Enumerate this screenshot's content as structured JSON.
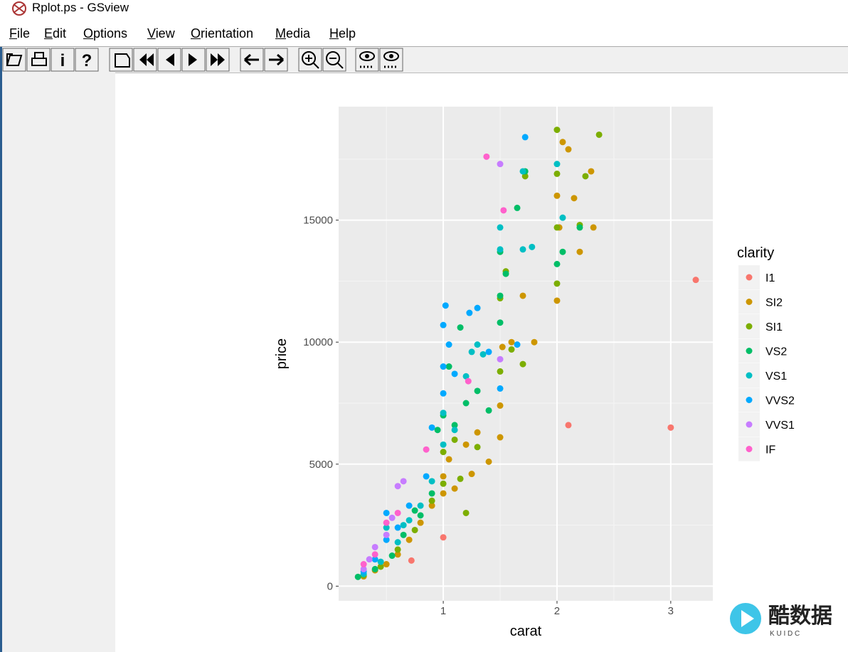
{
  "window": {
    "title": "Rplot.ps - GSview",
    "menu": [
      "File",
      "Edit",
      "Options",
      "View",
      "Orientation",
      "Media",
      "Help"
    ],
    "toolbar_text": [
      "i",
      "?"
    ]
  },
  "chart_data": {
    "type": "scatter",
    "x_label": "carat",
    "y_label": "price",
    "legend_title": "clarity",
    "xlim": [
      0.08,
      3.37
    ],
    "ylim": [
      -600,
      19650
    ],
    "xticks": [
      1,
      2,
      3
    ],
    "yticks": [
      0,
      5000,
      10000,
      15000
    ],
    "grid": true,
    "legend": "right",
    "series": [
      {
        "name": "I1",
        "color": "#F8766D",
        "x": [
          2.1,
          3.0,
          3.22,
          1.0,
          0.72
        ],
        "values": [
          6600,
          6500,
          12550,
          2000,
          1050
        ]
      },
      {
        "name": "SI2",
        "color": "#CD9600",
        "x": [
          0.3,
          0.4,
          0.5,
          0.6,
          0.7,
          0.8,
          0.9,
          1.0,
          1.0,
          1.05,
          1.1,
          1.2,
          1.25,
          1.3,
          1.4,
          1.5,
          1.5,
          1.52,
          1.6,
          1.7,
          1.8,
          2.0,
          2.0,
          2.02,
          2.05,
          2.1,
          2.2,
          2.3,
          2.32,
          2.15
        ],
        "values": [
          400,
          650,
          900,
          1300,
          1900,
          2600,
          3300,
          3800,
          4500,
          5200,
          4000,
          5800,
          4600,
          6300,
          5100,
          6100,
          7400,
          9800,
          10000,
          11900,
          10000,
          11700,
          16000,
          14700,
          18200,
          17900,
          13700,
          17000,
          14700,
          15900
        ]
      },
      {
        "name": "SI1",
        "color": "#7CAE00",
        "x": [
          0.3,
          0.45,
          0.6,
          0.75,
          0.9,
          1.0,
          1.0,
          1.1,
          1.15,
          1.2,
          1.3,
          1.5,
          1.5,
          1.55,
          1.6,
          1.7,
          1.72,
          2.0,
          2.0,
          2.0,
          2.25,
          2.37,
          2.0,
          2.2
        ],
        "values": [
          450,
          800,
          1500,
          2300,
          3500,
          4200,
          5500,
          6000,
          4400,
          3000,
          5700,
          8800,
          11800,
          12900,
          9700,
          9100,
          16800,
          12400,
          16900,
          18700,
          16800,
          18500,
          14700,
          14800
        ]
      },
      {
        "name": "VS2",
        "color": "#00BE67",
        "x": [
          0.25,
          0.4,
          0.55,
          0.65,
          0.8,
          0.9,
          0.95,
          1.0,
          1.05,
          1.1,
          1.15,
          1.2,
          1.3,
          1.4,
          1.5,
          1.5,
          1.55,
          1.65,
          1.72,
          2.0,
          2.05,
          2.2,
          1.5,
          0.75
        ],
        "values": [
          380,
          700,
          1250,
          2100,
          2900,
          3800,
          6400,
          7000,
          9000,
          6600,
          10600,
          7500,
          8000,
          7200,
          10800,
          13700,
          12800,
          15500,
          17000,
          13200,
          13700,
          14700,
          11900,
          3100
        ]
      },
      {
        "name": "VS1",
        "color": "#00BFC4",
        "x": [
          0.3,
          0.45,
          0.6,
          0.7,
          0.8,
          0.9,
          1.0,
          1.0,
          1.1,
          1.2,
          1.25,
          1.3,
          1.35,
          1.5,
          1.5,
          1.7,
          1.78,
          1.7,
          2.0,
          2.05,
          0.5,
          0.65
        ],
        "values": [
          500,
          1000,
          1800,
          2700,
          3300,
          4300,
          5800,
          7100,
          6400,
          8600,
          9600,
          9900,
          9500,
          14700,
          13800,
          13800,
          13900,
          17000,
          17300,
          15100,
          2400,
          2500
        ]
      },
      {
        "name": "VVS2",
        "color": "#00A9FF",
        "x": [
          0.3,
          0.4,
          0.5,
          0.6,
          0.7,
          0.85,
          0.9,
          1.0,
          1.0,
          1.02,
          1.0,
          1.05,
          1.1,
          1.23,
          1.3,
          1.4,
          1.5,
          1.72,
          1.65,
          0.5
        ],
        "values": [
          600,
          1100,
          1900,
          2400,
          3300,
          4500,
          6500,
          7900,
          9000,
          11500,
          10700,
          9900,
          8700,
          11200,
          11400,
          9600,
          8100,
          18400,
          9900,
          3000
        ]
      },
      {
        "name": "VVS1",
        "color": "#C77CFF",
        "x": [
          0.3,
          0.35,
          0.4,
          0.5,
          0.55,
          0.6,
          0.65,
          1.5,
          1.5
        ],
        "values": [
          700,
          1100,
          1600,
          2100,
          2800,
          4100,
          4300,
          17300,
          9300
        ]
      },
      {
        "name": "IF",
        "color": "#FF61CC",
        "x": [
          0.3,
          0.4,
          0.5,
          0.6,
          0.85,
          1.22,
          1.38,
          1.53
        ],
        "values": [
          900,
          1300,
          2600,
          3000,
          5600,
          8400,
          17600,
          15400
        ]
      }
    ]
  },
  "watermark": {
    "text": "酷数据",
    "sub": "K U I D C"
  }
}
